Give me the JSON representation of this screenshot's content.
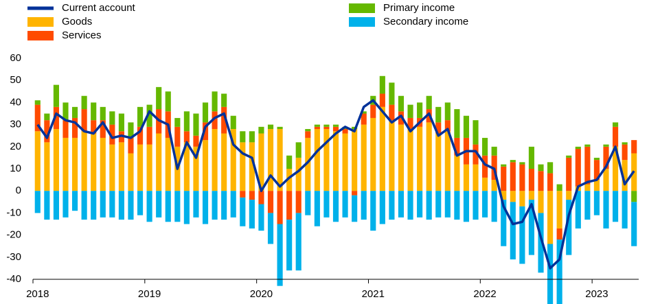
{
  "chart_data": {
    "type": "bar",
    "categories": [
      "2018",
      null,
      null,
      null,
      null,
      null,
      null,
      null,
      null,
      null,
      null,
      null,
      "2019",
      null,
      null,
      null,
      null,
      null,
      null,
      null,
      null,
      null,
      null,
      null,
      "2020",
      null,
      null,
      null,
      null,
      null,
      null,
      null,
      null,
      null,
      null,
      null,
      "2021",
      null,
      null,
      null,
      null,
      null,
      null,
      null,
      null,
      null,
      null,
      null,
      "2022",
      null,
      null,
      null,
      null,
      null,
      null,
      null,
      null,
      null,
      null,
      null,
      "2023",
      null,
      null,
      null,
      null
    ],
    "series": [
      {
        "name": "Goods",
        "color": "#ffb400",
        "values": [
          27,
          22,
          28,
          24,
          24,
          27,
          26,
          24,
          21,
          22,
          17,
          21,
          21,
          26,
          24,
          20,
          22,
          20,
          23,
          28,
          26,
          28,
          22,
          22,
          26,
          28,
          28,
          10,
          15,
          24,
          28,
          28,
          27,
          26,
          28,
          30,
          33,
          38,
          32,
          30,
          28,
          29,
          31,
          26,
          27,
          16,
          12,
          12,
          6,
          5,
          -4,
          -5,
          -7,
          -4,
          -10,
          -24,
          -17,
          -4,
          2,
          3,
          5,
          10,
          20,
          14,
          17
        ]
      },
      {
        "name": "Services",
        "color": "#ff4b00",
        "values": [
          12,
          10,
          10,
          8,
          9,
          10,
          6,
          8,
          9,
          5,
          7,
          8,
          8,
          11,
          12,
          9,
          5,
          5,
          8,
          8,
          12,
          0,
          -3,
          -4,
          -6,
          -10,
          -15,
          -13,
          -10,
          3,
          1,
          1,
          2,
          2,
          -2,
          5,
          6,
          6,
          7,
          6,
          5,
          4,
          6,
          5,
          5,
          8,
          12,
          9,
          10,
          11,
          11,
          13,
          12,
          10,
          9,
          8,
          -5,
          15,
          17,
          17,
          9,
          10,
          9,
          7,
          6
        ]
      },
      {
        "name": "Primary income",
        "color": "#65b800",
        "values": [
          2,
          3,
          10,
          8,
          5,
          6,
          8,
          6,
          6,
          8,
          7,
          9,
          10,
          10,
          9,
          4,
          9,
          10,
          9,
          9,
          6,
          6,
          5,
          5,
          3,
          2,
          1,
          6,
          7,
          1,
          1,
          1,
          1,
          1,
          1,
          1,
          4,
          8,
          10,
          7,
          6,
          7,
          6,
          7,
          8,
          13,
          10,
          11,
          8,
          4,
          1,
          1,
          1,
          10,
          3,
          5,
          3,
          1,
          1,
          1,
          1,
          1,
          2,
          1,
          -5
        ]
      },
      {
        "name": "Secondary income",
        "color": "#00b1ea",
        "values": [
          -10,
          -13,
          -13,
          -12,
          -9,
          -13,
          -13,
          -12,
          -12,
          -13,
          -13,
          -11,
          -14,
          -12,
          -14,
          -14,
          -15,
          -12,
          -15,
          -13,
          -13,
          -12,
          -13,
          -13,
          -12,
          -14,
          -28,
          -23,
          -26,
          -11,
          -16,
          -12,
          -14,
          -12,
          -12,
          -13,
          -18,
          -15,
          -13,
          -12,
          -13,
          -12,
          -13,
          -12,
          -12,
          -13,
          -14,
          -13,
          -12,
          -14,
          -21,
          -26,
          -26,
          -25,
          -27,
          -33,
          -33,
          -25,
          -17,
          -13,
          -11,
          -17,
          -14,
          -17,
          -20
        ]
      },
      {
        "name": "Current account",
        "type": "line",
        "color": "#003299",
        "values": [
          30,
          24,
          35,
          32,
          31,
          27,
          26,
          31,
          24,
          25,
          24,
          27,
          36,
          32,
          30,
          10,
          22,
          15,
          29,
          33,
          35,
          21,
          17,
          15,
          0,
          7,
          2,
          6,
          9,
          13,
          18,
          22,
          26,
          29,
          27,
          38,
          41,
          36,
          31,
          34,
          27,
          31,
          35,
          25,
          28,
          16,
          18,
          18,
          12,
          10,
          -7,
          -15,
          -14,
          -6,
          -21,
          -35,
          -31,
          -11,
          2,
          4,
          5,
          11,
          20,
          3,
          9
        ]
      }
    ],
    "ylim": [
      -40,
      60
    ],
    "yticks": [
      -40,
      -30,
      -20,
      -10,
      0,
      10,
      20,
      30,
      40,
      50,
      60
    ],
    "grid": false
  }
}
